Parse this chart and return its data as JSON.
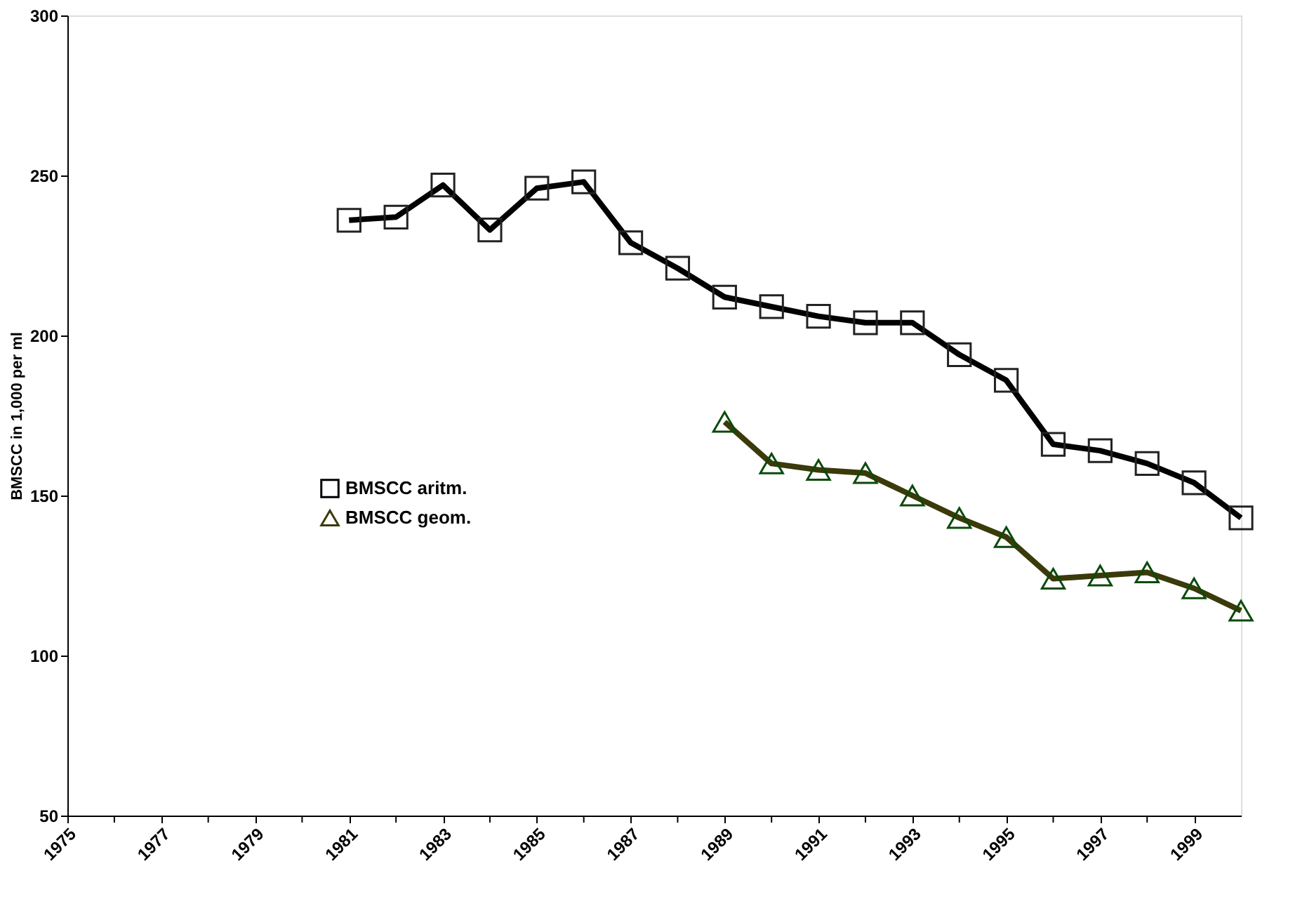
{
  "chart_data": {
    "type": "line",
    "ylabel": "BMSCC in 1,000 per ml",
    "xlim": [
      1975,
      2000
    ],
    "ylim": [
      50,
      300
    ],
    "yticks": [
      50,
      100,
      150,
      200,
      250,
      300
    ],
    "xticks": [
      1975,
      {
        "value": 1976,
        "label": null
      },
      1977,
      {
        "value": 1978,
        "label": null
      },
      1979,
      {
        "value": 1980,
        "label": null
      },
      1981,
      {
        "value": 1982,
        "label": null
      },
      1983,
      {
        "value": 1984,
        "label": null
      },
      1985,
      {
        "value": 1986,
        "label": null
      },
      1987,
      {
        "value": 1988,
        "label": null
      },
      1989,
      {
        "value": 1990,
        "label": null
      },
      1991,
      {
        "value": 1992,
        "label": null
      },
      1993,
      {
        "value": 1994,
        "label": null
      },
      1995,
      {
        "value": 1996,
        "label": null
      },
      1997,
      {
        "value": 1998,
        "label": null
      },
      1999
    ],
    "grid": false,
    "legend": "left",
    "line_style": "solid",
    "series": [
      {
        "name": "BMSCC aritm.",
        "color": "#000000",
        "marker": "square",
        "x": [
          1981,
          1982,
          1983,
          1984,
          1985,
          1986,
          1987,
          1988,
          1989,
          1990,
          1991,
          1992,
          1993,
          1994,
          1995,
          1996,
          1997,
          1998,
          1999,
          2000
        ],
        "values": [
          236,
          237,
          247,
          233,
          246,
          248,
          229,
          221,
          212,
          209,
          206,
          204,
          204,
          194,
          186,
          166,
          164,
          160,
          154,
          143
        ]
      },
      {
        "name": "BMSCC geom.",
        "color": "#3a3a0a",
        "marker": "triangle",
        "x": [
          1989,
          1990,
          1991,
          1992,
          1993,
          1994,
          1995,
          1996,
          1997,
          1998,
          1999,
          2000
        ],
        "values": [
          173,
          160,
          158,
          157,
          150,
          143,
          137,
          124,
          125,
          126,
          121,
          114
        ]
      }
    ]
  }
}
